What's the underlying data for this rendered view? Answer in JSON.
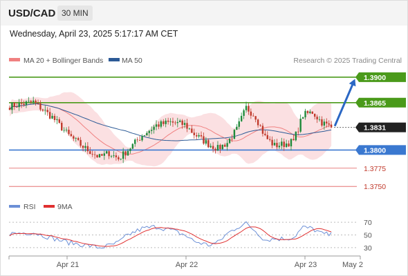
{
  "header": {
    "symbol": "USD/CAD",
    "timeframe": "30 MIN"
  },
  "datetime": "Wednesday, April 23, 2025 5:17:17 AM CET",
  "legend": {
    "ma20": "MA 20 + Bollinger Bands",
    "ma50": "MA 50",
    "credit": "Research © 2025 Trading Central"
  },
  "rsi_legend": {
    "rsi": "RSI",
    "ma9": "9MA"
  },
  "colors": {
    "resistance": "#4a9a1a",
    "support": "#3a78d0",
    "minor": "#e05a5a",
    "price_tag": "#222222",
    "ma20": "#f08080",
    "ma50": "#2c5a96",
    "band_fill": "#fadadd",
    "arrow": "#2a67c4",
    "rsi": "#6b8fd6",
    "rsi_ma": "#e03030"
  },
  "chart_data": {
    "type": "candlestick",
    "ylim": [
      1.3735,
      1.3915
    ],
    "levels": [
      {
        "value": 1.39,
        "label": "1.3900",
        "kind": "resistance"
      },
      {
        "value": 1.3865,
        "label": "1.3865",
        "kind": "resistance"
      },
      {
        "value": 1.3831,
        "label": "1.3831",
        "kind": "price"
      },
      {
        "value": 1.38,
        "label": "1.3800",
        "kind": "support"
      },
      {
        "value": 1.3775,
        "label": "1.3775",
        "kind": "minor"
      },
      {
        "value": 1.375,
        "label": "1.3750",
        "kind": "minor"
      }
    ],
    "x_labels": [
      "Apr 21",
      "Apr 22",
      "Apr 23",
      "May 2"
    ],
    "arrow": {
      "from": 1.3831,
      "to": 1.39
    },
    "price": {
      "anchors": [
        [
          0,
          1.386
        ],
        [
          10,
          1.3866
        ],
        [
          18,
          1.3845
        ],
        [
          25,
          1.382
        ],
        [
          32,
          1.3802
        ],
        [
          38,
          1.379
        ],
        [
          42,
          1.3796
        ],
        [
          46,
          1.3788
        ],
        [
          50,
          1.38
        ],
        [
          56,
          1.382
        ],
        [
          62,
          1.3834
        ],
        [
          68,
          1.3838
        ],
        [
          74,
          1.3835
        ],
        [
          78,
          1.3822
        ],
        [
          84,
          1.3808
        ],
        [
          88,
          1.3802
        ],
        [
          92,
          1.381
        ],
        [
          96,
          1.3828
        ],
        [
          100,
          1.3858
        ],
        [
          104,
          1.3846
        ],
        [
          108,
          1.3818
        ],
        [
          112,
          1.3806
        ],
        [
          116,
          1.3808
        ],
        [
          120,
          1.3812
        ],
        [
          124,
          1.3848
        ],
        [
          128,
          1.3852
        ],
        [
          132,
          1.3838
        ],
        [
          136,
          1.3831
        ]
      ]
    },
    "rsi": {
      "ticks": [
        70,
        50,
        30
      ],
      "range": [
        20,
        80
      ],
      "anchors": [
        [
          0,
          52
        ],
        [
          10,
          54
        ],
        [
          18,
          45
        ],
        [
          25,
          38
        ],
        [
          32,
          34
        ],
        [
          38,
          30
        ],
        [
          42,
          33
        ],
        [
          46,
          38
        ],
        [
          50,
          50
        ],
        [
          56,
          60
        ],
        [
          62,
          63
        ],
        [
          68,
          58
        ],
        [
          74,
          50
        ],
        [
          78,
          40
        ],
        [
          84,
          34
        ],
        [
          88,
          38
        ],
        [
          92,
          52
        ],
        [
          96,
          62
        ],
        [
          100,
          68
        ],
        [
          104,
          56
        ],
        [
          108,
          42
        ],
        [
          112,
          44
        ],
        [
          116,
          44
        ],
        [
          120,
          46
        ],
        [
          124,
          62
        ],
        [
          128,
          60
        ],
        [
          132,
          52
        ],
        [
          136,
          50
        ]
      ]
    }
  }
}
